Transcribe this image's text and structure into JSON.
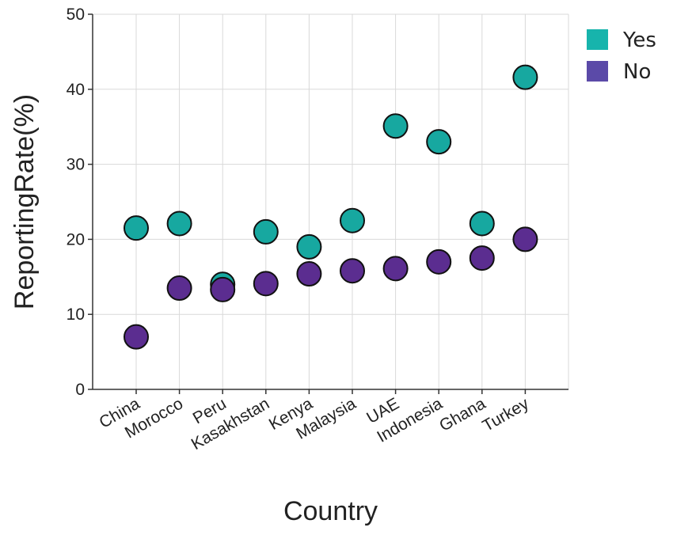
{
  "chart_data": {
    "type": "scatter",
    "categories": [
      "China",
      "Morocco",
      "Peru",
      "Kasakhstan",
      "Kenya",
      "Malaysia",
      "UAE",
      "Indonesia",
      "Ghana",
      "Turkey"
    ],
    "series": [
      {
        "name": "Yes",
        "color": "#17a8a0",
        "values": [
          21.5,
          22.1,
          14.0,
          21.0,
          19.0,
          22.5,
          35.1,
          33.0,
          22.1,
          41.6
        ]
      },
      {
        "name": "No",
        "color": "#5b2d90",
        "values": [
          7.0,
          13.5,
          13.3,
          14.1,
          15.4,
          15.8,
          16.1,
          17.0,
          17.5,
          20.0
        ]
      }
    ],
    "legend_colors": {
      "Yes": "#17b4ac",
      "No": "#5b4aa8"
    },
    "xlabel": "Country",
    "ylabel": "ReportingRate(%)",
    "ylim": [
      0,
      50
    ],
    "yticks": [
      0,
      10,
      20,
      30,
      40,
      50
    ],
    "grid": true,
    "legend_position": "top-right"
  }
}
